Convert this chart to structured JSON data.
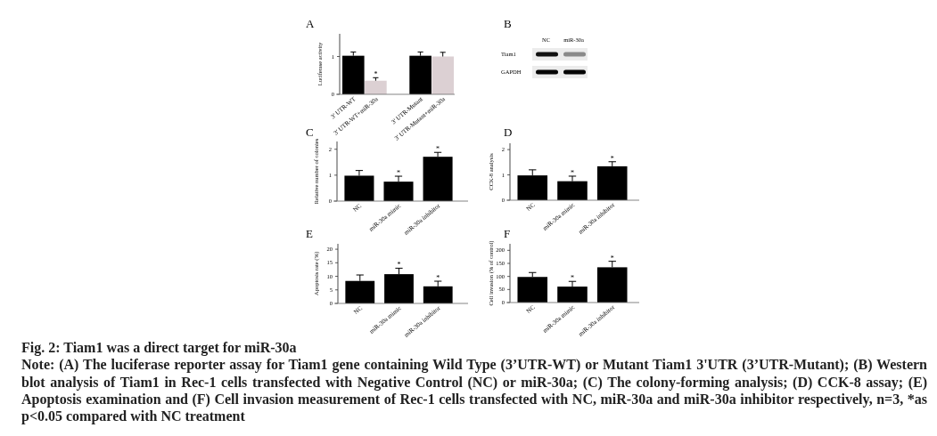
{
  "chart_data": [
    {
      "type": "bar",
      "title": "A",
      "ylabel": "Luciferase activity",
      "categories": [
        "3' UTR-WT",
        "3' UTR-WT+miR-30a",
        null,
        "3' UTR-Mutant",
        "3' UTR-Mutant+miR-30a"
      ],
      "values": [
        1.02,
        0.36,
        null,
        1.02,
        1.0
      ],
      "colors": [
        "#000000",
        "#dcd0d3",
        null,
        "#000000",
        "#dcd0d3"
      ],
      "errors": [
        [
          1.02,
          1.12
        ],
        [
          0.36,
          0.44
        ],
        null,
        [
          1.02,
          1.12
        ],
        [
          1.0,
          1.11
        ]
      ],
      "ylim": [
        0,
        1.6
      ],
      "yticks": [
        0,
        1
      ],
      "annotations": [
        {
          "text": "*",
          "x": "3' UTR-WT+miR-30a",
          "y": 0.44
        }
      ]
    },
    {
      "type": "other",
      "title": "B",
      "categories": [
        "NC",
        "miR-30a"
      ],
      "y_categories": [
        "Tiam1",
        "GAPDH"
      ]
    },
    {
      "type": "bar",
      "title": "C",
      "ylabel": "Relative number of colonies",
      "categories": [
        "NC",
        "miR-30a mimic",
        "miR-30a inhibitor"
      ],
      "values": [
        0.98,
        0.75,
        1.71
      ],
      "color": "#000000",
      "errors": [
        [
          0.98,
          1.18
        ],
        [
          0.75,
          0.96
        ],
        [
          1.71,
          1.88
        ]
      ],
      "ylim": [
        0,
        2.3
      ],
      "yticks": [
        0,
        1,
        2
      ],
      "annotations": [
        {
          "text": "*",
          "x": "miR-30a mimic",
          "y": 0.96
        },
        {
          "text": "*",
          "x": "miR-30a inhibitor",
          "y": 1.88
        }
      ]
    },
    {
      "type": "bar",
      "title": "D",
      "ylabel": "CCK-8 analysis",
      "categories": [
        "NC",
        "miR-30a mimic",
        "miR-30a inhibitor"
      ],
      "values": [
        0.98,
        0.75,
        1.34
      ],
      "color": "#000000",
      "errors": [
        [
          0.98,
          1.2
        ],
        [
          0.75,
          0.95
        ],
        [
          1.34,
          1.52
        ]
      ],
      "ylim": [
        0,
        2.25
      ],
      "yticks": [
        0,
        1,
        2
      ],
      "annotations": [
        {
          "text": "*",
          "x": "miR-30a mimic",
          "y": 0.95
        },
        {
          "text": "*",
          "x": "miR-30a inhibitor",
          "y": 1.52
        }
      ]
    },
    {
      "type": "bar",
      "title": "E",
      "ylabel": "Apoptosis rate (%)",
      "categories": [
        "NC",
        "miR-30a mimic",
        "miR-30a inhibitor"
      ],
      "values": [
        8.3,
        10.8,
        6.3
      ],
      "color": "#000000",
      "errors": [
        [
          8.3,
          10.5
        ],
        [
          10.8,
          13.0
        ],
        [
          6.3,
          8.2
        ]
      ],
      "ylim": [
        0,
        22
      ],
      "yticks": [
        0,
        5,
        10,
        15,
        20
      ],
      "annotations": [
        {
          "text": "*",
          "x": "miR-30a mimic",
          "y": 13.0
        },
        {
          "text": "*",
          "x": "miR-30a inhibitor",
          "y": 8.2
        }
      ]
    },
    {
      "type": "bar",
      "title": "F",
      "ylabel": "Cell invasion (% of control)",
      "categories": [
        "NC",
        "miR-30a mimic",
        "miR-30a inhibitor"
      ],
      "values": [
        98,
        61,
        135
      ],
      "color": "#000000",
      "errors": [
        [
          98,
          115
        ],
        [
          61,
          81
        ],
        [
          135,
          158
        ]
      ],
      "ylim": [
        0,
        225
      ],
      "yticks": [
        0,
        50,
        100,
        150,
        200
      ],
      "annotations": [
        {
          "text": "*",
          "x": "miR-30a mimic",
          "y": 81
        },
        {
          "text": "*",
          "x": "miR-30a inhibitor",
          "y": 158
        }
      ]
    },
    {
      "type": "other",
      "title": "Fig. 2: Tiam1 was a direct target for miR-30a",
      "annotations": [
        "Note: (A) The luciferase reporter assay for Tiam1 gene containing Wild Type (3’UTR-WT) or Mutant Tiam1 3'UTR (3’UTR-Mutant); (B) Western blot analysis of Tiam1 in Rec-1 cells transfected with Negative Control (NC) or miR-30a; (C) The colony-forming analysis; (D) CCK-8 assay; (E) Apoptosis examination and (F) Cell invasion measurement of Rec-1 cells transfected with NC, miR-30a and miR-30a inhibitor respectively, n=3, *as p<0.05 compared with NC treatment"
      ]
    }
  ]
}
